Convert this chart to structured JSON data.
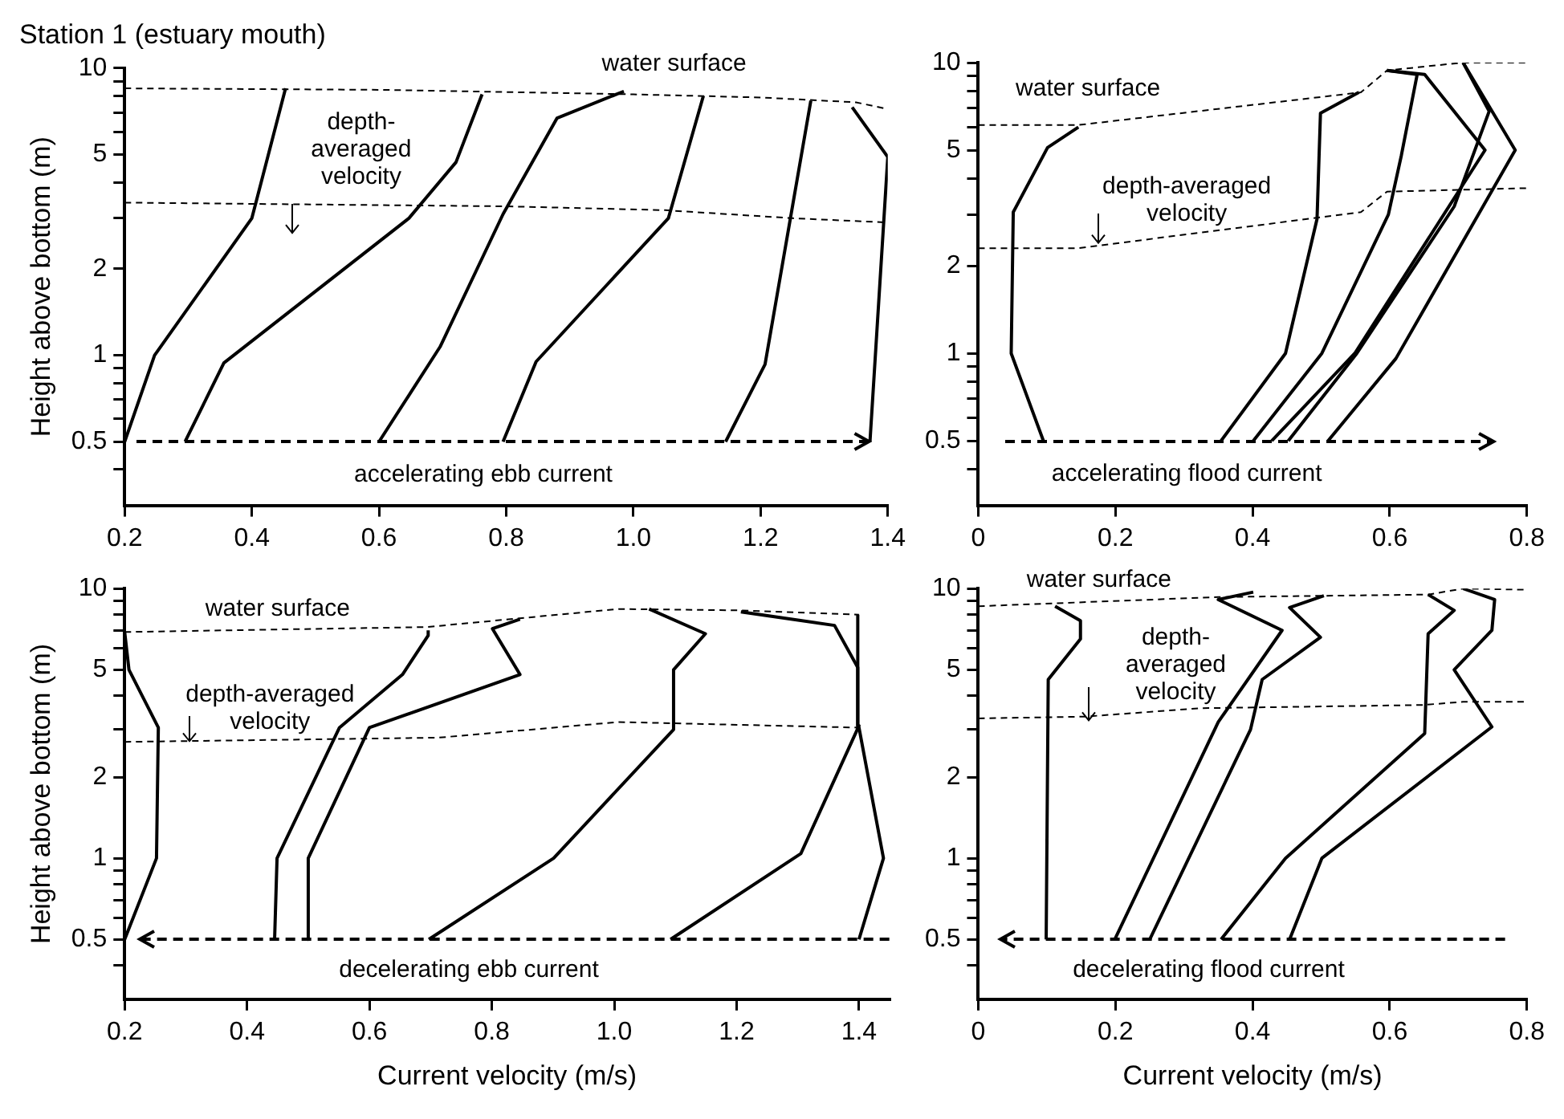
{
  "chart_data": [
    {
      "type": "line",
      "title": "Station 1 (estuary mouth)",
      "ylabel": "Height above bottom (m)",
      "log": "y",
      "legend": false,
      "marker": "none",
      "line_style": "solid",
      "xlim": [
        0.2,
        1.4
      ],
      "xticks": [
        0.2,
        0.4,
        0.6,
        0.8,
        {
          "value": 1,
          "label": "1.0"
        },
        1.2,
        1.4
      ],
      "ylim": [
        0.3,
        10
      ],
      "yticks": [
        {
          "value": 0.4,
          "label": null
        },
        0.5,
        {
          "value": 0.6,
          "label": null
        },
        {
          "value": 0.7,
          "label": null
        },
        {
          "value": 0.8,
          "label": null
        },
        {
          "value": 0.9,
          "label": null
        },
        1,
        2,
        {
          "value": 3,
          "label": null
        },
        {
          "value": 4,
          "label": null
        },
        5,
        {
          "value": 6,
          "label": null
        },
        {
          "value": 7,
          "label": null
        },
        {
          "value": 8,
          "label": null
        },
        {
          "value": 9,
          "label": null
        },
        10
      ],
      "annotations": [
        "accelerating ebb current"
      ],
      "series": [
        {
          "name": "water surface",
          "line_style": "dashed",
          "x": [
            0.2,
            0.6,
            1.0,
            1.2,
            1.35,
            1.4
          ],
          "values": [
            8.5,
            8.4,
            8.1,
            7.9,
            7.6,
            7.2
          ]
        },
        {
          "name": "depth-averaged velocity",
          "line_style": "dashed",
          "x": [
            0.2,
            0.8,
            1.05,
            1.25,
            1.4
          ],
          "values": [
            3.4,
            3.3,
            3.2,
            3.0,
            2.9
          ]
        },
        {
          "x": [
            0.2,
            0.247,
            0.4,
            0.453
          ],
          "values": [
            0.5,
            1.0,
            3.0,
            8.5
          ]
        },
        {
          "x": [
            0.295,
            0.356,
            0.647,
            0.721,
            0.762
          ],
          "values": [
            0.5,
            0.94,
            3.0,
            4.7,
            8.1
          ]
        },
        {
          "x": [
            0.6,
            0.696,
            0.795,
            0.88,
            0.985
          ],
          "values": [
            0.5,
            1.07,
            3.1,
            6.7,
            8.3
          ]
        },
        {
          "x": [
            0.795,
            0.847,
            1.055,
            1.11
          ],
          "values": [
            0.5,
            0.95,
            3.0,
            8.0
          ]
        },
        {
          "x": [
            1.145,
            1.207,
            1.279
          ],
          "values": [
            0.5,
            0.93,
            7.7
          ]
        },
        {
          "x": [
            1.372,
            1.4,
            1.344
          ],
          "values": [
            0.5,
            4.9,
            7.3
          ]
        }
      ]
    },
    {
      "type": "line",
      "log": "y",
      "legend": false,
      "marker": "none",
      "line_style": "solid",
      "xlim": [
        0,
        0.8
      ],
      "xticks": [
        0,
        0.2,
        0.4,
        0.6,
        0.8
      ],
      "ylim": [
        0.3,
        10
      ],
      "yticks": [
        {
          "value": 0.4,
          "label": null
        },
        0.5,
        {
          "value": 0.6,
          "label": null
        },
        {
          "value": 0.7,
          "label": null
        },
        {
          "value": 0.8,
          "label": null
        },
        {
          "value": 0.9,
          "label": null
        },
        1,
        2,
        {
          "value": 3,
          "label": null
        },
        {
          "value": 4,
          "label": null
        },
        5,
        {
          "value": 6,
          "label": null
        },
        {
          "value": 7,
          "label": null
        },
        {
          "value": 8,
          "label": null
        },
        {
          "value": 9,
          "label": null
        },
        10
      ],
      "annotations": [
        "accelerating flood current"
      ],
      "series": [
        {
          "name": "water surface",
          "line_style": "dashed",
          "x": [
            0,
            0.146,
            0.558,
            0.596,
            0.707,
            0.8
          ],
          "values": [
            6.1,
            6.1,
            7.9,
            9.4,
            10,
            10
          ]
        },
        {
          "name": "depth-averaged velocity",
          "line_style": "dashed",
          "x": [
            0,
            0.146,
            0.558,
            0.596,
            0.8
          ],
          "values": [
            2.3,
            2.3,
            3.06,
            3.6,
            3.7
          ]
        },
        {
          "x": [
            0.095,
            0.048,
            0.051,
            0.101,
            0.146
          ],
          "values": [
            0.5,
            1.0,
            3.06,
            5.1,
            6.0
          ]
        },
        {
          "x": [
            0.354,
            0.448,
            0.494,
            0.499,
            0.555
          ],
          "values": [
            0.5,
            1.0,
            2.9,
            6.7,
            7.9
          ]
        },
        {
          "x": [
            0.401,
            0.501,
            0.598,
            0.617,
            0.64,
            0.596
          ],
          "values": [
            0.5,
            1.0,
            3.0,
            4.8,
            9.1,
            9.4
          ]
        },
        {
          "x": [
            0.428,
            0.549,
            0.739,
            0.651,
            0.596
          ],
          "values": [
            0.5,
            1.0,
            5.0,
            9.1,
            9.4
          ]
        },
        {
          "x": [
            0.452,
            0.552,
            0.694,
            0.745,
            0.707
          ],
          "values": [
            0.5,
            1.0,
            3.2,
            6.8,
            10
          ]
        },
        {
          "x": [
            0.51,
            0.609,
            0.783,
            0.707
          ],
          "values": [
            0.5,
            0.96,
            5.0,
            10
          ]
        }
      ]
    },
    {
      "type": "line",
      "xlabel": "Current velocity (m/s)",
      "ylabel": "Height above bottom (m)",
      "log": "y",
      "legend": false,
      "marker": "none",
      "line_style": "solid",
      "xlim": [
        0.2,
        1.45
      ],
      "xticks": [
        0.2,
        0.4,
        0.6,
        0.8,
        {
          "value": 1,
          "label": "1.0"
        },
        1.2,
        1.4
      ],
      "ylim": [
        0.3,
        10
      ],
      "yticks": [
        {
          "value": 0.4,
          "label": null
        },
        0.5,
        {
          "value": 0.6,
          "label": null
        },
        {
          "value": 0.7,
          "label": null
        },
        {
          "value": 0.8,
          "label": null
        },
        {
          "value": 0.9,
          "label": null
        },
        1,
        2,
        {
          "value": 3,
          "label": null
        },
        {
          "value": 4,
          "label": null
        },
        5,
        {
          "value": 6,
          "label": null
        },
        {
          "value": 7,
          "label": null
        },
        {
          "value": 8,
          "label": null
        },
        {
          "value": 9,
          "label": null
        },
        10
      ],
      "annotations": [
        "decelerating ebb current"
      ],
      "series": [
        {
          "name": "water surface",
          "line_style": "dashed",
          "x": [
            0.2,
            0.694,
            1.007,
            1.206,
            1.4
          ],
          "values": [
            6.9,
            7.2,
            8.4,
            8.3,
            8.0
          ]
        },
        {
          "name": "depth-averaged velocity",
          "line_style": "dashed",
          "x": [
            0.2,
            0.713,
            1.007,
            1.4
          ],
          "values": [
            2.7,
            2.8,
            3.2,
            3.05
          ]
        },
        {
          "x": [
            0.2,
            0.252,
            0.255,
            0.207,
            0.2
          ],
          "values": [
            0.5,
            1.0,
            3.05,
            5.0,
            6.9
          ]
        },
        {
          "x": [
            0.445,
            0.449,
            0.551,
            0.654,
            0.696,
            0.696
          ],
          "values": [
            0.5,
            1.0,
            3.05,
            4.8,
            6.7,
            7.0
          ]
        },
        {
          "x": [
            0.499,
            0.5,
            0.6,
            0.846,
            0.801,
            0.846
          ],
          "values": [
            0.5,
            1.0,
            3.05,
            4.8,
            7.1,
            7.7
          ]
        },
        {
          "x": [
            0.697,
            0.901,
            1.097,
            1.097,
            1.149,
            1.057
          ],
          "values": [
            0.5,
            1.0,
            3.0,
            5.0,
            6.8,
            8.4
          ]
        },
        {
          "x": [
            1.092,
            1.305,
            1.4,
            1.398,
            1.36,
            1.207
          ],
          "values": [
            0.5,
            1.04,
            3.1,
            5.1,
            7.3,
            8.2
          ]
        },
        {
          "x": [
            1.4,
            1.44,
            1.4,
            1.398
          ],
          "values": [
            0.5,
            1.0,
            3.05,
            8.0
          ]
        }
      ]
    },
    {
      "type": "line",
      "xlabel": "Current velocity (m/s)",
      "log": "y",
      "legend": false,
      "marker": "none",
      "line_style": "solid",
      "xlim": [
        0,
        0.8
      ],
      "xticks": [
        0,
        0.2,
        0.4,
        0.6,
        0.8
      ],
      "ylim": [
        0.3,
        10
      ],
      "yticks": [
        {
          "value": 0.4,
          "label": null
        },
        0.5,
        {
          "value": 0.6,
          "label": null
        },
        {
          "value": 0.7,
          "label": null
        },
        {
          "value": 0.8,
          "label": null
        },
        {
          "value": 0.9,
          "label": null
        },
        1,
        2,
        {
          "value": 3,
          "label": null
        },
        {
          "value": 4,
          "label": null
        },
        5,
        {
          "value": 6,
          "label": null
        },
        {
          "value": 7,
          "label": null
        },
        {
          "value": 8,
          "label": null
        },
        {
          "value": 9,
          "label": null
        },
        10
      ],
      "annotations": [
        "decelerating flood current"
      ],
      "series": [
        {
          "name": "water surface",
          "line_style": "dashed",
          "x": [
            0,
            0.35,
            0.656,
            0.707,
            0.8
          ],
          "values": [
            8.6,
            9.3,
            9.5,
            10,
            9.9
          ]
        },
        {
          "name": "depth-averaged velocity",
          "line_style": "dashed",
          "x": [
            0,
            0.155,
            0.324,
            0.647,
            0.707,
            0.8
          ],
          "values": [
            3.3,
            3.35,
            3.6,
            3.7,
            3.8,
            3.8
          ]
        },
        {
          "x": [
            0.099,
            0.102,
            0.149,
            0.149,
            0.112
          ],
          "values": [
            0.5,
            4.6,
            6.5,
            7.6,
            8.6
          ]
        },
        {
          "x": [
            0.199,
            0.35,
            0.443,
            0.35,
            0.401
          ],
          "values": [
            0.5,
            3.2,
            7.0,
            9.1,
            9.7
          ]
        },
        {
          "x": [
            0.25,
            0.397,
            0.414,
            0.499,
            0.454,
            0.504
          ],
          "values": [
            0.5,
            3.0,
            4.6,
            6.6,
            8.5,
            9.4
          ]
        },
        {
          "x": [
            0.354,
            0.448,
            0.651,
            0.656,
            0.694,
            0.656
          ],
          "values": [
            0.5,
            1.0,
            2.9,
            6.8,
            8.3,
            9.5
          ]
        },
        {
          "x": [
            0.454,
            0.501,
            0.749,
            0.694,
            0.749,
            0.753,
            0.707
          ],
          "values": [
            0.5,
            1.0,
            3.07,
            5.0,
            7.0,
            9.1,
            10
          ]
        }
      ]
    }
  ]
}
